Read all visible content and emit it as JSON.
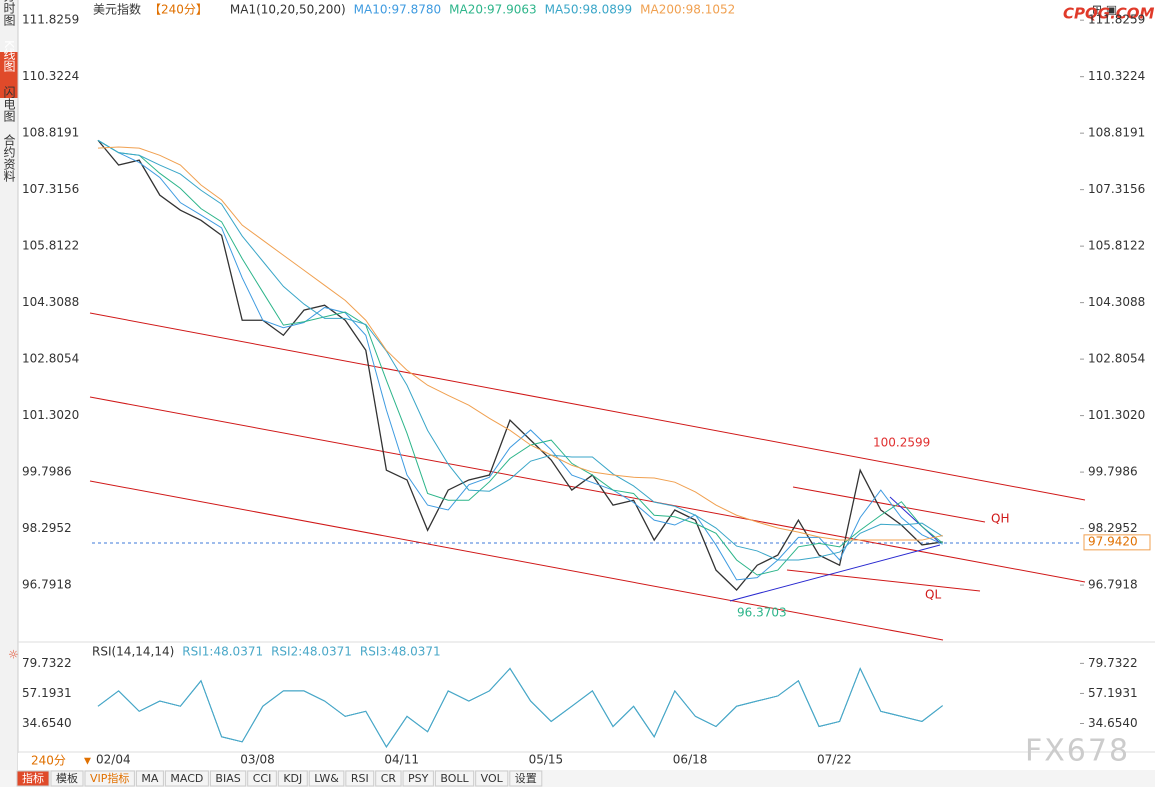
{
  "sidebar_tabs": [
    "分时图",
    "K线图",
    "闪电图",
    "合约资料"
  ],
  "logo": "CPQG.COM",
  "watermark": "FX678",
  "period_button": "240分",
  "toolbar": [
    "指标",
    "模板",
    "VIP指标",
    "MA",
    "MACD",
    "BIAS",
    "CCI",
    "KDJ",
    "LW&",
    "RSI",
    "CR",
    "PSY",
    "BOLL",
    "VOL",
    "设置"
  ],
  "chart_data": [
    {
      "type": "line",
      "title": "美元指数",
      "period": "【240分】",
      "indicator": "MA1(10,20,50,200)",
      "color": "#333333",
      "categories": [
        "02/04",
        null,
        null,
        null,
        null,
        null,
        null,
        "03/08",
        null,
        null,
        null,
        null,
        null,
        null,
        "04/11",
        null,
        null,
        null,
        null,
        null,
        null,
        "05/15",
        null,
        null,
        null,
        null,
        null,
        null,
        "06/18",
        null,
        null,
        null,
        null,
        null,
        null,
        "07/22",
        null,
        null,
        null,
        null,
        null,
        null
      ],
      "values": [
        108.63,
        107.97,
        108.1,
        107.17,
        106.77,
        106.5,
        106.1,
        103.84,
        103.84,
        103.44,
        104.11,
        104.24,
        103.84,
        103.04,
        99.85,
        99.59,
        98.25,
        99.32,
        99.59,
        99.72,
        101.18,
        100.65,
        100.12,
        99.32,
        99.72,
        98.92,
        99.05,
        97.99,
        98.79,
        98.52,
        97.19,
        96.66,
        97.32,
        97.59,
        98.52,
        97.59,
        97.32,
        99.85,
        98.79,
        98.39,
        97.86,
        97.94
      ],
      "series": [
        {
          "name": "MA10:97.8780",
          "color": "#3f9be0",
          "values": [
            108.63,
            108.3,
            108.04,
            107.64,
            106.97,
            106.64,
            106.3,
            104.97,
            103.84,
            103.64,
            103.78,
            104.18,
            104.04,
            103.44,
            101.45,
            99.72,
            98.92,
            98.79,
            99.46,
            99.66,
            100.45,
            100.92,
            100.39,
            99.72,
            99.52,
            99.32,
            98.99,
            98.52,
            98.39,
            98.66,
            97.86,
            96.93,
            96.99,
            97.46,
            98.06,
            98.06,
            97.46,
            98.59,
            99.32,
            98.59,
            98.13,
            97.88
          ]
        },
        {
          "name": "MA20:97.9063",
          "color": "#2db58a",
          "values": [
            108.63,
            108.3,
            108.23,
            107.75,
            107.35,
            106.81,
            106.46,
            105.48,
            104.59,
            103.71,
            103.8,
            103.93,
            104.06,
            103.71,
            102.24,
            100.83,
            99.23,
            99.05,
            99.05,
            99.54,
            100.16,
            100.52,
            100.65,
            100.03,
            99.72,
            99.32,
            99.23,
            98.65,
            98.61,
            98.43,
            98.17,
            97.46,
            97.06,
            97.19,
            97.81,
            97.9,
            97.81,
            98.25,
            98.65,
            99.01,
            98.35,
            97.91
          ]
        },
        {
          "name": "MA50:98.0899",
          "color": "#3aa6c8",
          "values": [
            108.63,
            108.3,
            108.23,
            107.97,
            107.73,
            107.3,
            106.93,
            106.08,
            105.41,
            104.74,
            104.27,
            103.89,
            103.89,
            103.73,
            103.02,
            102.11,
            100.91,
            100.01,
            99.32,
            99.29,
            99.61,
            100.09,
            100.25,
            100.2,
            100.2,
            99.75,
            99.43,
            99.0,
            98.89,
            98.65,
            98.31,
            97.83,
            97.7,
            97.46,
            97.46,
            97.54,
            97.67,
            98.17,
            98.41,
            98.39,
            98.44,
            98.09
          ]
        },
        {
          "name": "MA200:98.1052",
          "color": "#f0a050",
          "values": [
            108.42,
            108.45,
            108.42,
            108.23,
            107.97,
            107.44,
            107.04,
            106.37,
            105.97,
            105.57,
            105.17,
            104.77,
            104.37,
            103.84,
            103.04,
            102.51,
            102.11,
            101.84,
            101.58,
            101.23,
            100.91,
            100.52,
            100.25,
            99.98,
            99.8,
            99.72,
            99.66,
            99.64,
            99.53,
            99.27,
            98.92,
            98.65,
            98.47,
            98.31,
            98.2,
            98.07,
            97.99,
            97.99,
            97.99,
            97.99,
            97.99,
            98.11
          ]
        }
      ],
      "ylim": [
        95.33,
        112.15
      ],
      "yticks": [
        111.8259,
        110.3224,
        108.8191,
        107.3156,
        105.8122,
        104.3088,
        102.8054,
        {
          "value": 101.302,
          "label": "101.3020"
        },
        99.7986,
        98.2952,
        96.7918
      ],
      "high": 100.2599,
      "low": 96.3703,
      "last": {
        "value": 97.942,
        "label": "97.9420"
      },
      "channel_labels": [
        "QH",
        "QL"
      ]
    },
    {
      "type": "line",
      "title": "RSI(14,14,14)",
      "series": [
        {
          "name": "RSI1:48.0371",
          "color": "#4aa8c8",
          "values": [
            47.6,
            59.1,
            43.8,
            51.5,
            47.6,
            66.7,
            24.7,
            20.9,
            47.6,
            59.1,
            59.1,
            51.5,
            40.0,
            43.8,
            17.1,
            40.0,
            28.5,
            59.1,
            51.5,
            59.1,
            75.9,
            51.5,
            36.2,
            47.6,
            59.1,
            32.4,
            47.6,
            24.7,
            59.1,
            40.0,
            32.4,
            47.6,
            51.5,
            55.3,
            66.7,
            32.4,
            36.2,
            75.9,
            43.8,
            40.0,
            36.2,
            48.04
          ]
        },
        {
          "name": "RSI2:48.0371",
          "color": "#4aa8c8",
          "values": [
            47.6,
            59.1,
            43.8,
            51.5,
            47.6,
            66.7,
            24.7,
            20.9,
            47.6,
            59.1,
            59.1,
            51.5,
            40.0,
            43.8,
            17.1,
            40.0,
            28.5,
            59.1,
            51.5,
            59.1,
            75.9,
            51.5,
            36.2,
            47.6,
            59.1,
            32.4,
            47.6,
            24.7,
            59.1,
            40.0,
            32.4,
            47.6,
            51.5,
            55.3,
            66.7,
            32.4,
            36.2,
            75.9,
            43.8,
            40.0,
            36.2,
            48.04
          ]
        },
        {
          "name": "RSI3:48.0371",
          "color": "#4aa8c8",
          "values": [
            47.6,
            59.1,
            43.8,
            51.5,
            47.6,
            66.7,
            24.7,
            20.9,
            47.6,
            59.1,
            59.1,
            51.5,
            40.0,
            43.8,
            17.1,
            40.0,
            28.5,
            59.1,
            51.5,
            59.1,
            75.9,
            51.5,
            36.2,
            47.6,
            59.1,
            32.4,
            47.6,
            24.7,
            59.1,
            40.0,
            32.4,
            47.6,
            51.5,
            55.3,
            66.7,
            32.4,
            36.2,
            75.9,
            43.8,
            40.0,
            36.2,
            48.04
          ]
        }
      ],
      "ylim": [
        13.3,
        93.5
      ],
      "yticks": [
        79.7322,
        57.1931,
        {
          "value": 34.654,
          "label": "34.6540"
        }
      ]
    }
  ]
}
